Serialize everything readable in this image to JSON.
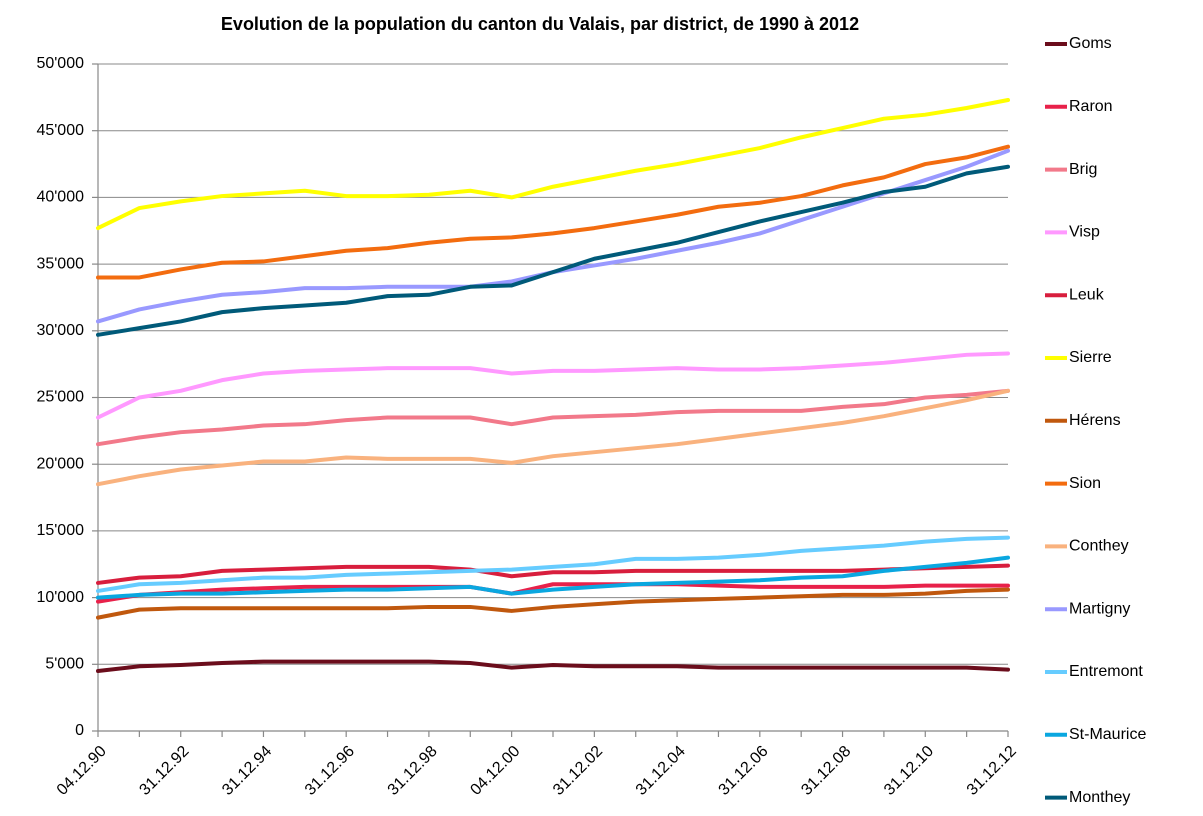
{
  "chart_data": {
    "type": "line",
    "title": "Evolution de la population du canton du Valais, par district, de 1990 à 2012",
    "categories": [
      "04.12.90",
      null,
      "31.12.92",
      null,
      "31.12.94",
      null,
      "31.12.96",
      null,
      "31.12.98",
      null,
      "04.12.00",
      null,
      "31.12.02",
      null,
      "31.12.04",
      null,
      "31.12.06",
      null,
      "31.12.08",
      null,
      "31.12.10",
      null,
      "31.12.12"
    ],
    "ylim": [
      0,
      50000
    ],
    "yticks": [
      0,
      {
        "value": 5000,
        "label": "5'000"
      },
      {
        "value": 10000,
        "label": "10'000"
      },
      {
        "value": 15000,
        "label": "15'000"
      },
      {
        "value": 20000,
        "label": "20'000"
      },
      {
        "value": 25000,
        "label": "25'000"
      },
      {
        "value": 30000,
        "label": "30'000"
      },
      {
        "value": 35000,
        "label": "35'000"
      },
      {
        "value": 40000,
        "label": "40'000"
      },
      {
        "value": 45000,
        "label": "45'000"
      },
      {
        "value": 50000,
        "label": "50'000"
      }
    ],
    "grid": true,
    "legend": "right",
    "series": [
      {
        "name": "Goms",
        "color": "#6b0d1c",
        "values": [
          4500,
          4850,
          4950,
          5100,
          5200,
          5200,
          5200,
          5200,
          5200,
          5100,
          4750,
          4950,
          4850,
          4850,
          4850,
          4750,
          4750,
          4750,
          4750,
          4750,
          4750,
          4750,
          4600
        ]
      },
      {
        "name": "Raron",
        "color": "#e8214a",
        "values": [
          9700,
          10200,
          10400,
          10600,
          10700,
          10800,
          10800,
          10800,
          10800,
          10800,
          10300,
          11000,
          11000,
          11000,
          11000,
          10900,
          10800,
          10800,
          10800,
          10800,
          10900,
          10900,
          10900
        ]
      },
      {
        "name": "Brig",
        "color": "#f2798a",
        "values": [
          21500,
          22000,
          22400,
          22600,
          22900,
          23000,
          23300,
          23500,
          23500,
          23500,
          23000,
          23500,
          23600,
          23700,
          23900,
          24000,
          24000,
          24000,
          24300,
          24500,
          25000,
          25200,
          25500
        ]
      },
      {
        "name": "Visp",
        "color": "#ff99ff",
        "values": [
          23500,
          25000,
          25500,
          26300,
          26800,
          27000,
          27100,
          27200,
          27200,
          27200,
          26800,
          27000,
          27000,
          27100,
          27200,
          27100,
          27100,
          27200,
          27400,
          27600,
          27900,
          28200,
          28300
        ]
      },
      {
        "name": "Leuk",
        "color": "#d81e3d",
        "values": [
          11100,
          11500,
          11600,
          12000,
          12100,
          12200,
          12300,
          12300,
          12300,
          12100,
          11600,
          11900,
          11900,
          12000,
          12000,
          12000,
          12000,
          12000,
          12000,
          12100,
          12200,
          12300,
          12400
        ]
      },
      {
        "name": "Sierre",
        "color": "#ffff00",
        "values": [
          37700,
          39200,
          39700,
          40100,
          40300,
          40500,
          40100,
          40100,
          40200,
          40500,
          40000,
          40800,
          41400,
          42000,
          42500,
          43100,
          43700,
          44500,
          45200,
          45900,
          46200,
          46700,
          47300
        ]
      },
      {
        "name": "Hérens",
        "color": "#c0580e",
        "values": [
          8500,
          9100,
          9200,
          9200,
          9200,
          9200,
          9200,
          9200,
          9300,
          9300,
          9000,
          9300,
          9500,
          9700,
          9800,
          9900,
          10000,
          10100,
          10200,
          10200,
          10300,
          10500,
          10600
        ]
      },
      {
        "name": "Sion",
        "color": "#f36c0f",
        "values": [
          34000,
          34000,
          34600,
          35100,
          35200,
          35600,
          36000,
          36200,
          36600,
          36900,
          37000,
          37300,
          37700,
          38200,
          38700,
          39300,
          39600,
          40100,
          40900,
          41500,
          42500,
          43000,
          43800
        ]
      },
      {
        "name": "Conthey",
        "color": "#f9b27e",
        "values": [
          18500,
          19100,
          19600,
          19900,
          20200,
          20200,
          20500,
          20400,
          20400,
          20400,
          20100,
          20600,
          20900,
          21200,
          21500,
          21900,
          22300,
          22700,
          23100,
          23600,
          24200,
          24800,
          25500
        ]
      },
      {
        "name": "Martigny",
        "color": "#9999ff",
        "values": [
          30700,
          31600,
          32200,
          32700,
          32900,
          33200,
          33200,
          33300,
          33300,
          33300,
          33700,
          34400,
          34900,
          35400,
          36000,
          36600,
          37300,
          38300,
          39300,
          40300,
          41300,
          42300,
          43500
        ]
      },
      {
        "name": "Entremont",
        "color": "#66ccff",
        "values": [
          10500,
          11000,
          11100,
          11300,
          11500,
          11500,
          11700,
          11800,
          11900,
          12000,
          12100,
          12300,
          12500,
          12900,
          12900,
          13000,
          13200,
          13500,
          13700,
          13900,
          14200,
          14400,
          14500
        ]
      },
      {
        "name": "St-Maurice",
        "color": "#0aa7e0",
        "values": [
          10000,
          10200,
          10300,
          10300,
          10400,
          10500,
          10600,
          10600,
          10700,
          10800,
          10300,
          10600,
          10800,
          11000,
          11100,
          11200,
          11300,
          11500,
          11600,
          12000,
          12300,
          12600,
          13000
        ]
      },
      {
        "name": "Monthey",
        "color": "#005a79",
        "values": [
          29700,
          30200,
          30700,
          31400,
          31700,
          31900,
          32100,
          32600,
          32700,
          33300,
          33400,
          34400,
          35400,
          36000,
          36600,
          37400,
          38200,
          38900,
          39600,
          40400,
          40800,
          41800,
          42300
        ]
      }
    ]
  }
}
